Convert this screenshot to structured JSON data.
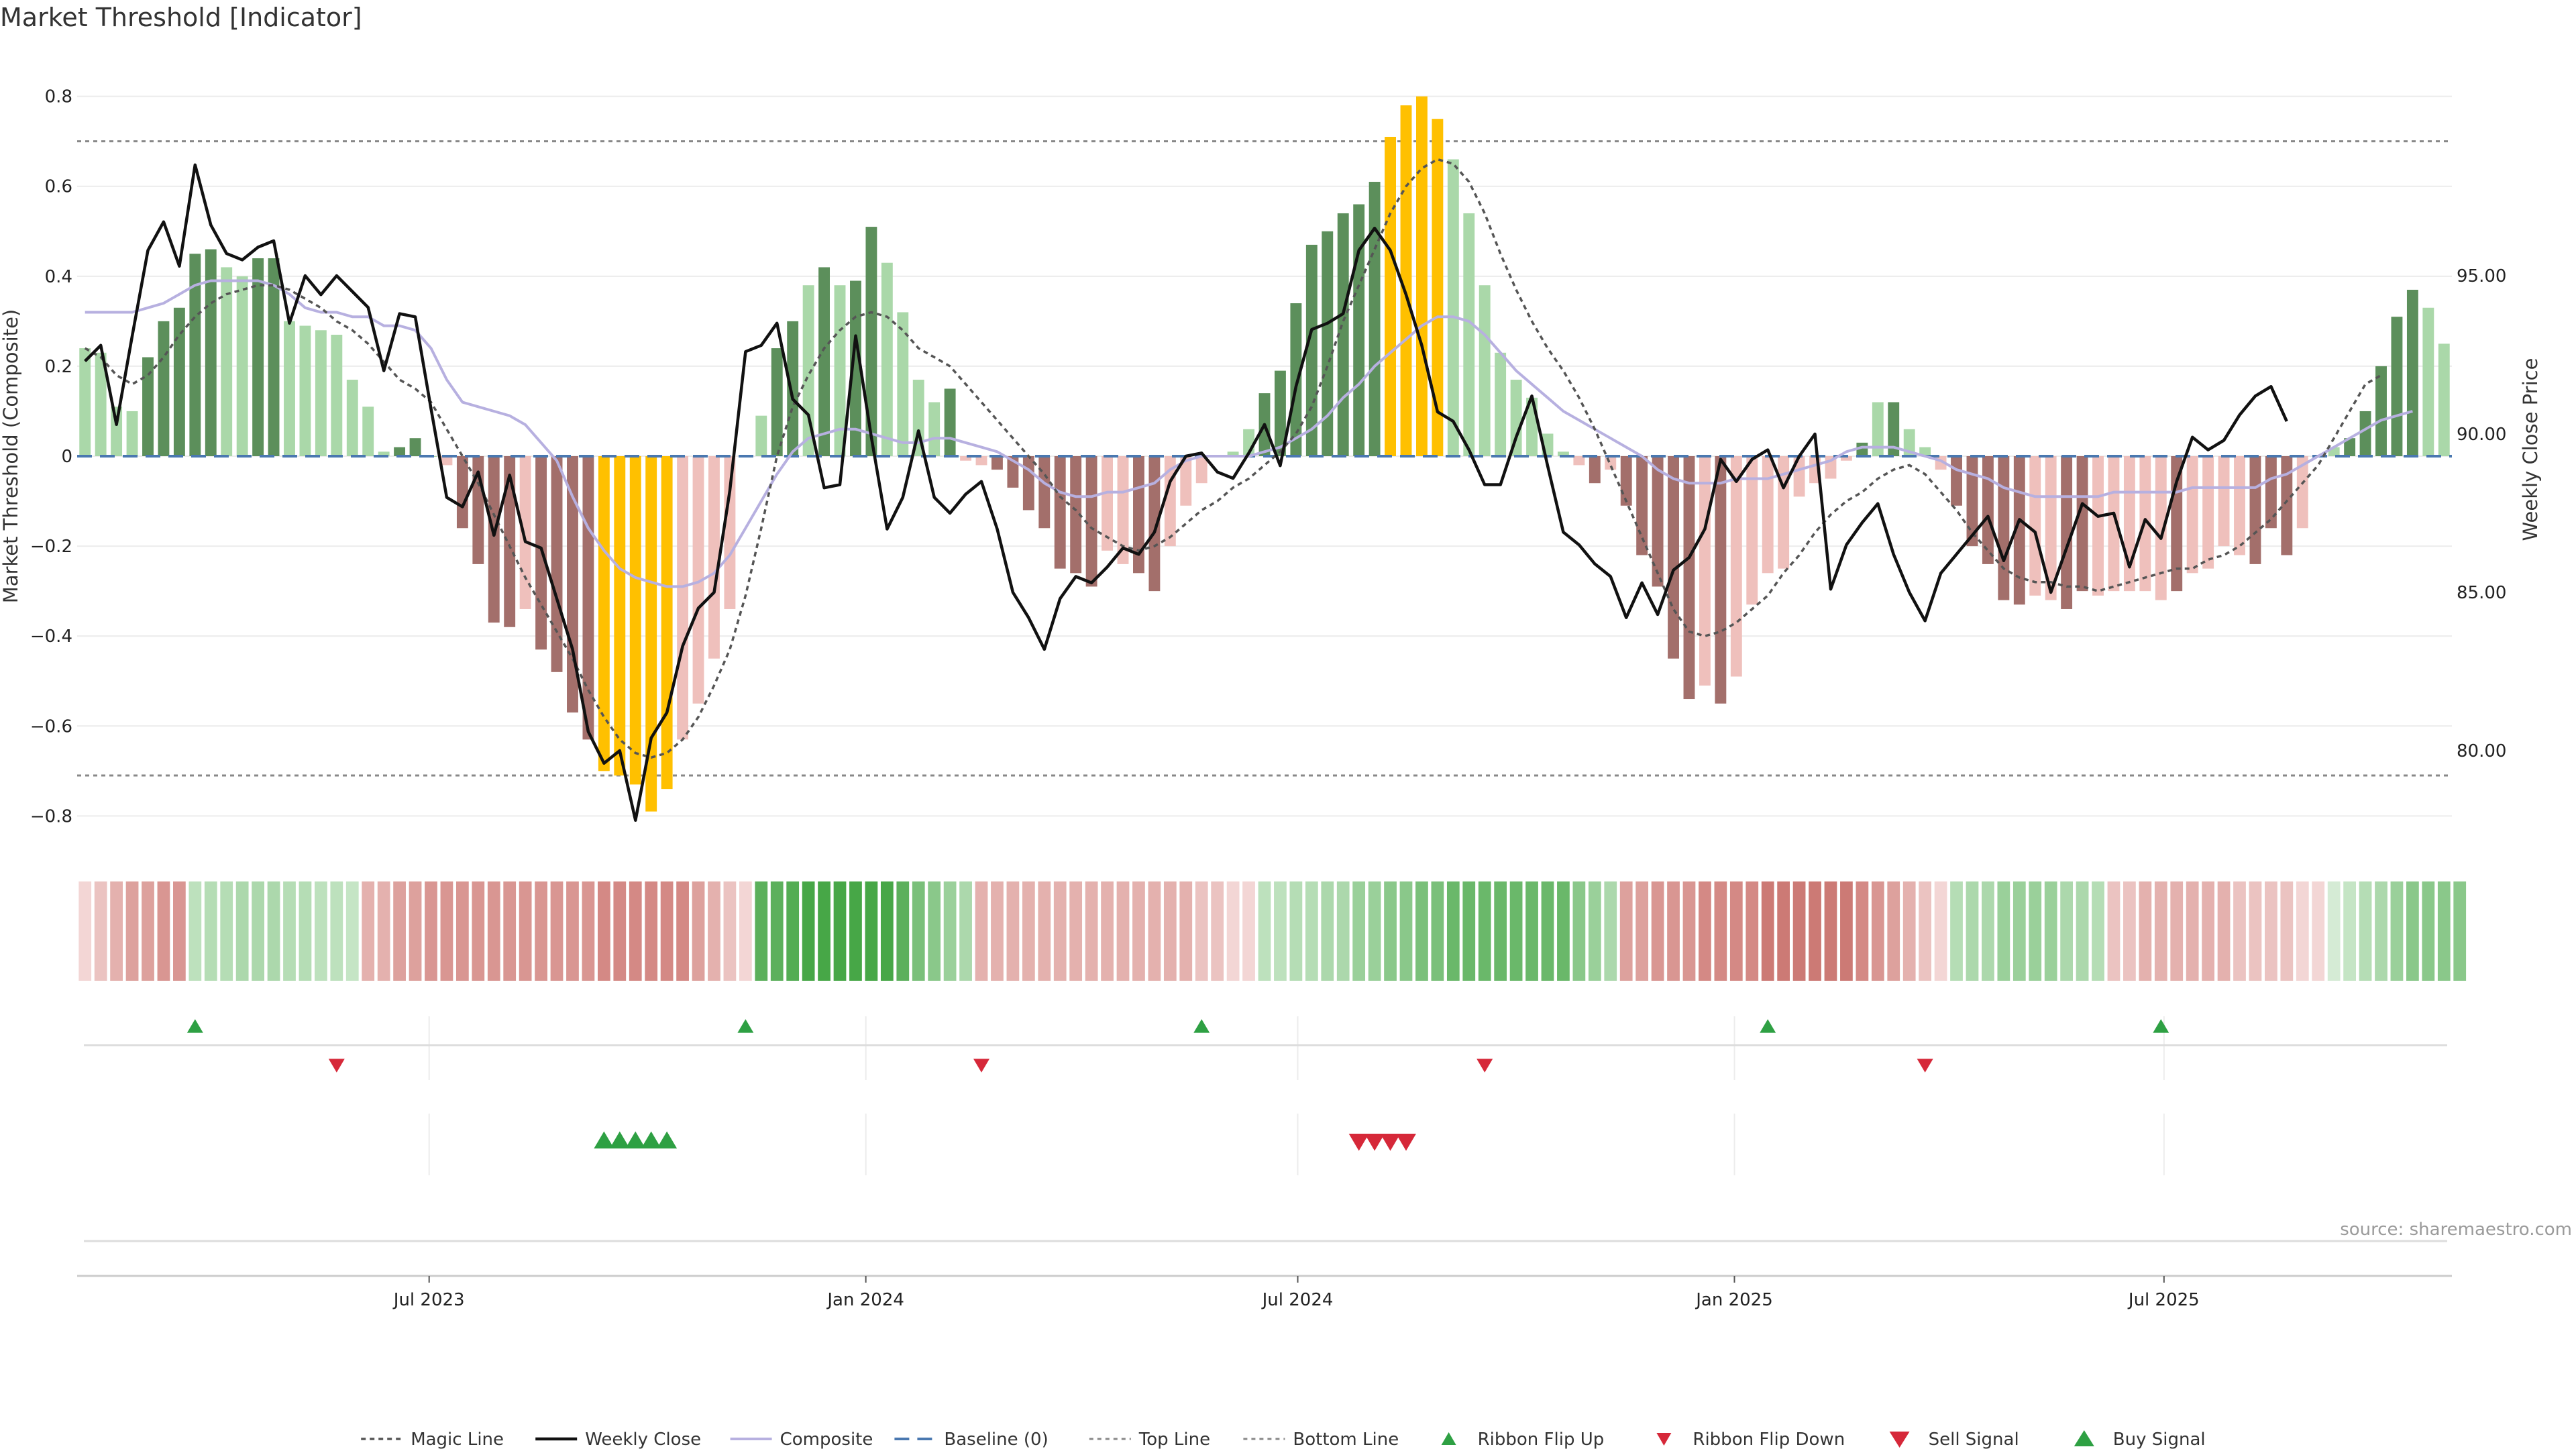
{
  "chart_data": {
    "type": "bar",
    "title": "Market Threshold [Indicator]",
    "ylabel": "Market Threshold (Composite)",
    "y2label": "Weekly Close Price",
    "source": "source: sharemaestro.com",
    "ylim": [
      -0.88,
      0.88
    ],
    "y2lim": [
      76.8,
      101.8
    ],
    "yticks": [
      -0.8,
      -0.6,
      -0.4,
      -0.2,
      0,
      0.2,
      0.4,
      0.6,
      0.8
    ],
    "ytick_labels": [
      "−0.8",
      "−0.6",
      "−0.4",
      "−0.2",
      "0",
      "0.2",
      "0.4",
      "0.6",
      "0.8"
    ],
    "y2ticks": [
      80,
      85,
      90,
      95
    ],
    "y2tick_labels": [
      "80.00",
      "85.00",
      "90.00",
      "95.00"
    ],
    "x_start": "2023-02-06",
    "x_end": "2025-10-27",
    "xticks": [
      {
        "date": "2023-07-01",
        "label": "Jul 2023"
      },
      {
        "date": "2024-01-01",
        "label": "Jan 2024"
      },
      {
        "date": "2024-07-01",
        "label": "Jul 2024"
      },
      {
        "date": "2025-01-01",
        "label": "Jan 2025"
      },
      {
        "date": "2025-07-01",
        "label": "Jul 2025"
      }
    ],
    "top_line": 0.7,
    "bottom_line": -0.71,
    "baseline": 0,
    "grid": true,
    "legend_position": "bottom",
    "bars": [
      0.24,
      0.23,
      0.11,
      0.1,
      0.22,
      0.3,
      0.33,
      0.45,
      0.46,
      0.42,
      0.4,
      0.44,
      0.44,
      0.3,
      0.29,
      0.28,
      0.27,
      0.17,
      0.11,
      0.01,
      0.02,
      0.04,
      0,
      -0.02,
      -0.16,
      -0.24,
      -0.37,
      -0.38,
      -0.34,
      -0.43,
      -0.48,
      -0.57,
      -0.63,
      -0.7,
      -0.71,
      -0.73,
      -0.79,
      -0.74,
      -0.63,
      -0.55,
      -0.45,
      -0.34,
      0,
      0.09,
      0.24,
      0.3,
      0.38,
      0.42,
      0.38,
      0.39,
      0.51,
      0.43,
      0.32,
      0.17,
      0.12,
      0.15,
      -0.01,
      -0.02,
      -0.03,
      -0.07,
      -0.12,
      -0.16,
      -0.25,
      -0.26,
      -0.29,
      -0.21,
      -0.24,
      -0.26,
      -0.3,
      -0.2,
      -0.11,
      -0.06,
      0,
      0.01,
      0.06,
      0.14,
      0.19,
      0.34,
      0.47,
      0.5,
      0.54,
      0.56,
      0.61,
      0.71,
      0.78,
      0.8,
      0.75,
      0.66,
      0.54,
      0.38,
      0.23,
      0.17,
      0.13,
      0.05,
      0.01,
      -0.02,
      -0.06,
      -0.03,
      -0.11,
      -0.22,
      -0.29,
      -0.45,
      -0.54,
      -0.51,
      -0.55,
      -0.49,
      -0.33,
      -0.26,
      -0.25,
      -0.09,
      -0.06,
      -0.05,
      -0.01,
      0.03,
      0.12,
      0.12,
      0.06,
      0.02,
      -0.03,
      -0.11,
      -0.2,
      -0.24,
      -0.32,
      -0.33,
      -0.31,
      -0.32,
      -0.34,
      -0.3,
      -0.31,
      -0.3,
      -0.3,
      -0.3,
      -0.32,
      -0.3,
      -0.26,
      -0.25,
      -0.2,
      -0.22,
      -0.24,
      -0.16,
      -0.22,
      -0.16,
      0,
      0.02,
      0.04,
      0.1,
      0.2,
      0.31,
      0.37,
      0.33,
      0.25
    ],
    "bar_colors": [
      "#aad8a9",
      "#aad8a9",
      "#aad8a9",
      "#aad8a9",
      "#5c8f5b",
      "#5c8f5b",
      "#5c8f5b",
      "#5c8f5b",
      "#5c8f5b",
      "#aad8a9",
      "#aad8a9",
      "#5c8f5b",
      "#5c8f5b",
      "#aad8a9",
      "#aad8a9",
      "#aad8a9",
      "#aad8a9",
      "#aad8a9",
      "#aad8a9",
      "#aad8a9",
      "#5c8f5b",
      "#5c8f5b",
      "#aad8a9",
      "#efc0bc",
      "#a36f6b",
      "#a36f6b",
      "#a36f6b",
      "#a36f6b",
      "#efc0bc",
      "#a36f6b",
      "#a36f6b",
      "#a36f6b",
      "#a36f6b",
      "#ffc000",
      "#ffc000",
      "#ffc000",
      "#ffc000",
      "#ffc000",
      "#efc0bc",
      "#efc0bc",
      "#efc0bc",
      "#efc0bc",
      "#aad8a9",
      "#aad8a9",
      "#5c8f5b",
      "#5c8f5b",
      "#aad8a9",
      "#5c8f5b",
      "#aad8a9",
      "#5c8f5b",
      "#5c8f5b",
      "#aad8a9",
      "#aad8a9",
      "#aad8a9",
      "#aad8a9",
      "#5c8f5b",
      "#efc0bc",
      "#efc0bc",
      "#a36f6b",
      "#a36f6b",
      "#a36f6b",
      "#a36f6b",
      "#a36f6b",
      "#a36f6b",
      "#a36f6b",
      "#efc0bc",
      "#efc0bc",
      "#a36f6b",
      "#a36f6b",
      "#efc0bc",
      "#efc0bc",
      "#efc0bc",
      "#aad8a9",
      "#aad8a9",
      "#aad8a9",
      "#5c8f5b",
      "#5c8f5b",
      "#5c8f5b",
      "#5c8f5b",
      "#5c8f5b",
      "#5c8f5b",
      "#5c8f5b",
      "#5c8f5b",
      "#ffc000",
      "#ffc000",
      "#ffc000",
      "#ffc000",
      "#aad8a9",
      "#aad8a9",
      "#aad8a9",
      "#aad8a9",
      "#aad8a9",
      "#aad8a9",
      "#aad8a9",
      "#aad8a9",
      "#efc0bc",
      "#a36f6b",
      "#efc0bc",
      "#a36f6b",
      "#a36f6b",
      "#a36f6b",
      "#a36f6b",
      "#a36f6b",
      "#efc0bc",
      "#a36f6b",
      "#efc0bc",
      "#efc0bc",
      "#efc0bc",
      "#efc0bc",
      "#efc0bc",
      "#efc0bc",
      "#efc0bc",
      "#efc0bc",
      "#5c8f5b",
      "#aad8a9",
      "#5c8f5b",
      "#aad8a9",
      "#aad8a9",
      "#efc0bc",
      "#a36f6b",
      "#a36f6b",
      "#a36f6b",
      "#a36f6b",
      "#a36f6b",
      "#efc0bc",
      "#efc0bc",
      "#a36f6b",
      "#a36f6b",
      "#efc0bc",
      "#efc0bc",
      "#efc0bc",
      "#efc0bc",
      "#efc0bc",
      "#a36f6b",
      "#efc0bc",
      "#efc0bc",
      "#efc0bc",
      "#efc0bc",
      "#a36f6b",
      "#a36f6b",
      "#a36f6b",
      "#efc0bc",
      "#aad8a9",
      "#aad8a9",
      "#5c8f5b",
      "#5c8f5b",
      "#5c8f5b",
      "#5c8f5b",
      "#5c8f5b",
      "#aad8a9",
      "#aad8a9"
    ],
    "weekly_close": [
      92.3,
      92.8,
      90.3,
      93.1,
      95.8,
      96.7,
      95.3,
      98.5,
      96.6,
      95.7,
      95.5,
      95.9,
      96.1,
      93.5,
      95.0,
      94.4,
      95.0,
      94.5,
      94.0,
      92.0,
      93.8,
      93.7,
      90.8,
      88.0,
      87.7,
      88.8,
      86.8,
      88.7,
      86.6,
      86.4,
      84.8,
      83.2,
      80.6,
      79.6,
      80.0,
      77.8,
      80.4,
      81.2,
      83.3,
      84.5,
      85.0,
      88.2,
      92.6,
      92.8,
      93.5,
      91.1,
      90.6,
      88.3,
      88.4,
      93.1,
      89.9,
      87.0,
      88.0,
      90.1,
      88.0,
      87.5,
      88.1,
      88.5,
      87.0,
      85.0,
      84.2,
      83.2,
      84.8,
      85.5,
      85.3,
      85.8,
      86.4,
      86.2,
      86.9,
      88.5,
      89.3,
      89.4,
      88.8,
      88.6,
      89.4,
      90.3,
      89.0,
      91.5,
      93.3,
      93.5,
      93.8,
      95.8,
      96.5,
      95.8,
      94.4,
      92.8,
      90.7,
      90.4,
      89.5,
      88.4,
      88.4,
      89.9,
      91.2,
      89.0,
      86.9,
      86.5,
      85.9,
      85.5,
      84.2,
      85.3,
      84.3,
      85.7,
      86.1,
      87.0,
      89.2,
      88.5,
      89.2,
      89.5,
      88.3,
      89.3,
      90.0,
      85.1,
      86.5,
      87.2,
      87.8,
      86.2,
      85.0,
      84.1,
      85.6,
      86.2,
      86.8,
      87.4,
      86.0,
      87.3,
      86.9,
      85.0,
      86.4,
      87.8,
      87.4,
      87.5,
      85.8,
      87.3,
      86.7,
      88.5,
      89.9,
      89.5,
      89.8,
      90.6,
      91.2,
      91.5,
      90.4
    ],
    "composite": [
      0.32,
      0.32,
      0.32,
      0.32,
      0.33,
      0.34,
      0.36,
      0.38,
      0.39,
      0.39,
      0.39,
      0.39,
      0.38,
      0.36,
      0.33,
      0.32,
      0.32,
      0.31,
      0.31,
      0.29,
      0.29,
      0.28,
      0.24,
      0.17,
      0.12,
      0.11,
      0.1,
      0.09,
      0.07,
      0.03,
      -0.01,
      -0.09,
      -0.16,
      -0.21,
      -0.25,
      -0.27,
      -0.28,
      -0.29,
      -0.29,
      -0.28,
      -0.26,
      -0.22,
      -0.16,
      -0.1,
      -0.04,
      0.01,
      0.04,
      0.05,
      0.06,
      0.06,
      0.05,
      0.04,
      0.03,
      0.03,
      0.04,
      0.04,
      0.03,
      0.02,
      0.01,
      -0.01,
      -0.03,
      -0.06,
      -0.08,
      -0.09,
      -0.09,
      -0.08,
      -0.08,
      -0.07,
      -0.06,
      -0.03,
      -0.01,
      0,
      0,
      0,
      0,
      0.01,
      0.02,
      0.04,
      0.06,
      0.09,
      0.13,
      0.16,
      0.2,
      0.23,
      0.26,
      0.29,
      0.31,
      0.31,
      0.3,
      0.27,
      0.23,
      0.19,
      0.16,
      0.13,
      0.1,
      0.08,
      0.06,
      0.04,
      0.02,
      0,
      -0.03,
      -0.05,
      -0.06,
      -0.06,
      -0.06,
      -0.05,
      -0.05,
      -0.05,
      -0.04,
      -0.03,
      -0.02,
      -0.01,
      0.01,
      0.02,
      0.02,
      0.02,
      0.01,
      0,
      -0.01,
      -0.03,
      -0.04,
      -0.05,
      -0.07,
      -0.08,
      -0.09,
      -0.09,
      -0.09,
      -0.09,
      -0.09,
      -0.08,
      -0.08,
      -0.08,
      -0.08,
      -0.08,
      -0.07,
      -0.07,
      -0.07,
      -0.07,
      -0.07,
      -0.05,
      -0.04,
      -0.02,
      0,
      0.02,
      0.04,
      0.06,
      0.08,
      0.09,
      0.1
    ],
    "magic_line": [
      0.24,
      0.22,
      0.18,
      0.16,
      0.18,
      0.22,
      0.27,
      0.31,
      0.34,
      0.36,
      0.37,
      0.38,
      0.38,
      0.37,
      0.35,
      0.33,
      0.3,
      0.28,
      0.25,
      0.21,
      0.17,
      0.15,
      0.12,
      0.06,
      0,
      -0.06,
      -0.13,
      -0.2,
      -0.27,
      -0.33,
      -0.39,
      -0.45,
      -0.52,
      -0.58,
      -0.63,
      -0.66,
      -0.67,
      -0.66,
      -0.63,
      -0.58,
      -0.51,
      -0.43,
      -0.31,
      -0.16,
      0,
      0.11,
      0.18,
      0.24,
      0.28,
      0.31,
      0.32,
      0.31,
      0.28,
      0.24,
      0.22,
      0.2,
      0.16,
      0.12,
      0.08,
      0.04,
      0,
      -0.04,
      -0.09,
      -0.12,
      -0.16,
      -0.18,
      -0.2,
      -0.21,
      -0.2,
      -0.18,
      -0.15,
      -0.12,
      -0.1,
      -0.07,
      -0.05,
      -0.02,
      0.01,
      0.05,
      0.11,
      0.2,
      0.3,
      0.38,
      0.46,
      0.54,
      0.6,
      0.64,
      0.66,
      0.65,
      0.61,
      0.54,
      0.45,
      0.37,
      0.3,
      0.24,
      0.19,
      0.13,
      0.06,
      -0.02,
      -0.1,
      -0.18,
      -0.26,
      -0.34,
      -0.39,
      -0.4,
      -0.39,
      -0.37,
      -0.34,
      -0.31,
      -0.26,
      -0.22,
      -0.17,
      -0.13,
      -0.1,
      -0.08,
      -0.05,
      -0.03,
      -0.02,
      -0.04,
      -0.08,
      -0.12,
      -0.17,
      -0.21,
      -0.25,
      -0.27,
      -0.28,
      -0.28,
      -0.29,
      -0.29,
      -0.3,
      -0.29,
      -0.28,
      -0.27,
      -0.26,
      -0.25,
      -0.25,
      -0.23,
      -0.22,
      -0.2,
      -0.17,
      -0.14,
      -0.1,
      -0.06,
      -0.02,
      0.04,
      0.1,
      0.16,
      0.18
    ],
    "ribbon": [
      "#f3d6d5",
      "#ebc3c1",
      "#e4b1ae",
      "#dda19d",
      "#dda19d",
      "#d99692",
      "#d99692",
      "#bde1bd",
      "#b5ddb5",
      "#b5ddb5",
      "#acd8ac",
      "#acd8ac",
      "#acd8ac",
      "#b5ddb5",
      "#b5ddb5",
      "#bde1bd",
      "#bde1bd",
      "#c5e5c5",
      "#e4b1ae",
      "#e4b1ae",
      "#dda19d",
      "#dda19d",
      "#d99692",
      "#d99692",
      "#d99692",
      "#d99692",
      "#d99692",
      "#d99692",
      "#d99692",
      "#d99692",
      "#d99692",
      "#d99692",
      "#d99692",
      "#d48985",
      "#d48985",
      "#d48985",
      "#d48985",
      "#d48985",
      "#d48985",
      "#dda19d",
      "#e4b1ae",
      "#ebc3c1",
      "#f3d6d5",
      "#5cb05c",
      "#5cb05c",
      "#54ad54",
      "#47a747",
      "#47a747",
      "#47a747",
      "#47a747",
      "#47a747",
      "#47a747",
      "#5cb05c",
      "#7ac07a",
      "#8ac88a",
      "#9ad09a",
      "#acd8ac",
      "#e4b1ae",
      "#e4b1ae",
      "#e4b1ae",
      "#e4b1ae",
      "#e4b1ae",
      "#e4b1ae",
      "#e4b1ae",
      "#e4b1ae",
      "#e4b1ae",
      "#e4b1ae",
      "#e4b1ae",
      "#e4b1ae",
      "#e4b1ae",
      "#e4b1ae",
      "#ebc3c1",
      "#ebc3c1",
      "#f3d6d5",
      "#f3d6d5",
      "#bde1bd",
      "#bde1bd",
      "#b5ddb5",
      "#b5ddb5",
      "#acd8ac",
      "#acd8ac",
      "#9ad09a",
      "#9ad09a",
      "#8ac88a",
      "#8ac88a",
      "#7ac07a",
      "#7ac07a",
      "#6ab86a",
      "#6ab86a",
      "#6ab86a",
      "#6ab86a",
      "#6ab86a",
      "#6ab86a",
      "#6ab86a",
      "#6ab86a",
      "#8ac88a",
      "#9ad09a",
      "#acd8ac",
      "#dda19d",
      "#dda19d",
      "#d99692",
      "#d99692",
      "#d99692",
      "#d48985",
      "#d48985",
      "#d48985",
      "#d48985",
      "#cc7a75",
      "#cc7a75",
      "#cc7a75",
      "#cc7a75",
      "#cc7a75",
      "#cc7a75",
      "#d48985",
      "#d99692",
      "#dda19d",
      "#e4b1ae",
      "#ebc3c1",
      "#f3d6d5",
      "#b5ddb5",
      "#acd8ac",
      "#acd8ac",
      "#9ad09a",
      "#9ad09a",
      "#9ad09a",
      "#9ad09a",
      "#acd8ac",
      "#acd8ac",
      "#b5ddb5",
      "#ebc3c1",
      "#ebc3c1",
      "#e4b1ae",
      "#e4b1ae",
      "#e4b1ae",
      "#e4b1ae",
      "#e4b1ae",
      "#e4b1ae",
      "#ebc3c1",
      "#ebc3c1",
      "#ebc3c1",
      "#ebc3c1",
      "#f3d6d5",
      "#f3d6d5",
      "#d5ebd5",
      "#c5e5c5",
      "#b5ddb5",
      "#acd8ac",
      "#9ad09a",
      "#8ac88a",
      "#8ac88a",
      "#8ac88a",
      "#8ac88a"
    ],
    "ribbon_flip_up": [
      7,
      42,
      71,
      107,
      132
    ],
    "ribbon_flip_down": [
      16,
      57,
      89,
      117
    ],
    "buy_signal": [
      33,
      34,
      35,
      36,
      37
    ],
    "sell_signal": [
      81,
      82,
      83,
      84
    ],
    "colors": {
      "strong_positive": "#5c8f5b",
      "weak_positive": "#aad8a9",
      "strong_negative": "#a36f6b",
      "weak_negative": "#efc0bc",
      "extreme": "#ffc000",
      "weekly_close": "#111111",
      "composite": "#b7b0e0",
      "magic_line": "#555555",
      "baseline": "#4a78b0",
      "signal_up": "#2ea043",
      "signal_down": "#d62839"
    },
    "legend": [
      {
        "key": "magic",
        "label": "Magic Line"
      },
      {
        "key": "close",
        "label": "Weekly Close"
      },
      {
        "key": "composite",
        "label": "Composite"
      },
      {
        "key": "baseline",
        "label": "Baseline (0)"
      },
      {
        "key": "top",
        "label": "Top Line"
      },
      {
        "key": "bottom",
        "label": "Bottom Line"
      },
      {
        "key": "flip_up",
        "label": "Ribbon Flip Up"
      },
      {
        "key": "flip_down",
        "label": "Ribbon Flip Down"
      },
      {
        "key": "sell",
        "label": "Sell Signal"
      },
      {
        "key": "buy",
        "label": "Buy Signal"
      }
    ]
  }
}
